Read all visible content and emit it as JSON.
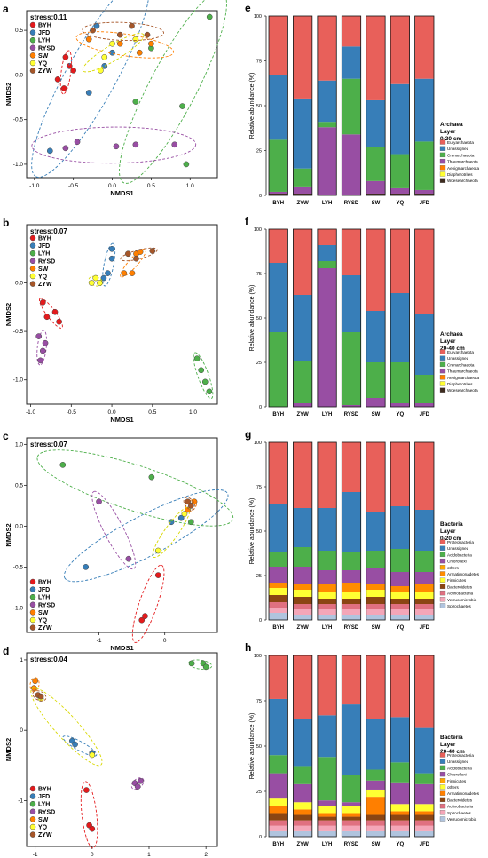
{
  "nmds_panels": [
    {
      "letter": "a",
      "stress": "stress:0.11",
      "xticks": [
        "-1.0",
        "-0.5",
        "0.0",
        "0.5",
        "1.0"
      ],
      "yticks": [
        "0.5",
        "0.0",
        "-0.5",
        "-1.0"
      ],
      "xlabel": "NMDS1",
      "ylabel": "NMDS2"
    },
    {
      "letter": "b",
      "stress": "stress:0.07",
      "xticks": [
        "-1.0",
        "-0.5",
        "0.0",
        "0.5",
        "1.0"
      ],
      "yticks": [
        "0.0",
        "-0.5",
        "-1.0"
      ],
      "xlabel": "NMDS1",
      "ylabel": "NMDS2"
    },
    {
      "letter": "c",
      "stress": "stress:0.07",
      "xticks": [
        "-1",
        "0"
      ],
      "yticks": [
        "1.0",
        "0.5",
        "0.0",
        "-0.5",
        "-1.0"
      ],
      "xlabel": "NMDS1",
      "ylabel": "NMDS2"
    },
    {
      "letter": "d",
      "stress": "stress:0.04",
      "xticks": [
        "-1",
        "0",
        "1",
        "2"
      ],
      "yticks": [
        "1",
        "0",
        "-1"
      ],
      "xlabel": "NMDS1",
      "ylabel": "NMDS2"
    }
  ],
  "nmds_groups": [
    {
      "name": "BYH",
      "color": "#e41a1c"
    },
    {
      "name": "JFD",
      "color": "#377eb8"
    },
    {
      "name": "LYH",
      "color": "#4daf4a"
    },
    {
      "name": "RYSD",
      "color": "#984ea3"
    },
    {
      "name": "SW",
      "color": "#ff7f00"
    },
    {
      "name": "YQ",
      "color": "#ffff33"
    },
    {
      "name": "ZYW",
      "color": "#a65628"
    }
  ],
  "chart_data": [
    {
      "type": "bar",
      "panel": "e",
      "stacked": true,
      "categories": [
        "BYH",
        "ZYW",
        "LYH",
        "RYSD",
        "SW",
        "YQ",
        "JFD"
      ],
      "ylabel": "Relative abundance (%)",
      "yticks": [
        "0",
        "25",
        "50",
        "75",
        "100"
      ],
      "ylim": [
        0,
        100
      ],
      "legend_title": [
        "Archaea",
        "Layer",
        "0-20 cm"
      ],
      "series": [
        {
          "name": "Woesearchaeota",
          "color": "#3d2b1f",
          "values": [
            1,
            1,
            0,
            0,
            1,
            1,
            1
          ]
        },
        {
          "name": "Diapherotrites",
          "color": "#ffff33",
          "values": [
            0,
            0,
            0,
            0,
            0,
            0,
            0
          ]
        },
        {
          "name": "Aenigmarchaeota",
          "color": "#ff7f00",
          "values": [
            0,
            0,
            0,
            0,
            0,
            0,
            0
          ]
        },
        {
          "name": "Thaumarchaeota",
          "color": "#984ea3",
          "values": [
            1,
            4,
            38,
            34,
            7,
            3,
            2
          ]
        },
        {
          "name": "Crenarchaeota",
          "color": "#4daf4a",
          "values": [
            29,
            10,
            3,
            31,
            19,
            19,
            27
          ]
        },
        {
          "name": "Unassigned",
          "color": "#377eb8",
          "values": [
            36,
            39,
            23,
            18,
            26,
            39,
            35
          ]
        },
        {
          "name": "Euryarchaeota",
          "color": "#e8605a",
          "values": [
            33,
            46,
            36,
            17,
            47,
            38,
            35
          ]
        }
      ]
    },
    {
      "type": "bar",
      "panel": "f",
      "stacked": true,
      "categories": [
        "BYH",
        "ZYW",
        "LYH",
        "RYSD",
        "SW",
        "YQ",
        "JFD"
      ],
      "ylabel": "Relative abundance (%)",
      "yticks": [
        "0",
        "25",
        "50",
        "75",
        "100"
      ],
      "ylim": [
        0,
        100
      ],
      "legend_title": [
        "Archaea",
        "Layer",
        "20-40 cm"
      ],
      "series": [
        {
          "name": "Woesearchaeota",
          "color": "#3d2b1f",
          "values": [
            0,
            0,
            0,
            0,
            0,
            0,
            0
          ]
        },
        {
          "name": "Diapherotrites",
          "color": "#ffff33",
          "values": [
            0,
            0,
            0,
            0,
            0,
            0,
            0
          ]
        },
        {
          "name": "Aenigmarchaeota",
          "color": "#ff7f00",
          "values": [
            0,
            0,
            0,
            0,
            0,
            0,
            0
          ]
        },
        {
          "name": "Thaumarchaeota",
          "color": "#984ea3",
          "values": [
            0,
            2,
            78,
            1,
            5,
            2,
            2
          ]
        },
        {
          "name": "Crenarchaeota",
          "color": "#4daf4a",
          "values": [
            42,
            24,
            4,
            41,
            20,
            23,
            16
          ]
        },
        {
          "name": "Unassigned",
          "color": "#377eb8",
          "values": [
            39,
            37,
            9,
            32,
            29,
            39,
            34
          ]
        },
        {
          "name": "Euryarchaeota",
          "color": "#e8605a",
          "values": [
            19,
            37,
            9,
            26,
            46,
            36,
            48
          ]
        }
      ]
    },
    {
      "type": "bar",
      "panel": "g",
      "stacked": true,
      "categories": [
        "BYH",
        "ZYW",
        "LYH",
        "RYSD",
        "SW",
        "YQ",
        "JFD"
      ],
      "ylabel": "Relative abundance (%)",
      "yticks": [
        "0",
        "25",
        "50",
        "75",
        "100"
      ],
      "ylim": [
        0,
        100
      ],
      "legend_title": [
        "Bacteria",
        "Layer",
        "0-20 cm"
      ],
      "series": [
        {
          "name": "Spirochaetes",
          "color": "#b0c4de",
          "values": [
            4,
            3,
            3,
            3,
            3,
            3,
            3
          ]
        },
        {
          "name": "Verrucomicrobia",
          "color": "#f4a6b8",
          "values": [
            3,
            3,
            3,
            3,
            3,
            3,
            3
          ]
        },
        {
          "name": "Actinobacteria",
          "color": "#e07080",
          "values": [
            3,
            3,
            3,
            3,
            3,
            3,
            3
          ]
        },
        {
          "name": "Bacteroidetes",
          "color": "#8b4513",
          "values": [
            4,
            4,
            3,
            3,
            4,
            3,
            3
          ]
        },
        {
          "name": "Firmicutes",
          "color": "#ffff33",
          "values": [
            4,
            4,
            4,
            4,
            4,
            4,
            4
          ]
        },
        {
          "name": "Armatimonadetes",
          "color": "#ff8c00",
          "values": [
            3,
            3,
            4,
            5,
            3,
            3,
            4
          ]
        },
        {
          "name": "others",
          "color": "#ffa500",
          "values": [
            0,
            0,
            0,
            0,
            0,
            0,
            0
          ]
        },
        {
          "name": "Chloroflexi",
          "color": "#984ea3",
          "values": [
            9,
            10,
            8,
            7,
            9,
            8,
            7
          ]
        },
        {
          "name": "Acidobacteria",
          "color": "#4daf4a",
          "values": [
            8,
            11,
            11,
            10,
            10,
            13,
            12
          ]
        },
        {
          "name": "Unassigned",
          "color": "#377eb8",
          "values": [
            27,
            22,
            24,
            34,
            22,
            24,
            23
          ]
        },
        {
          "name": "Proteobacteria",
          "color": "#e8605a",
          "values": [
            35,
            37,
            37,
            28,
            39,
            36,
            38
          ]
        }
      ]
    },
    {
      "type": "bar",
      "panel": "h",
      "stacked": true,
      "categories": [
        "BYH",
        "ZYW",
        "LYH",
        "RYSD",
        "SW",
        "YQ",
        "JFD"
      ],
      "ylabel": "Relative abundance (%)",
      "yticks": [
        "0",
        "25",
        "50",
        "75",
        "100"
      ],
      "ylim": [
        0,
        100
      ],
      "legend_title": [
        "Bacteria",
        "Layer",
        "20-40 cm"
      ],
      "series": [
        {
          "name": "Verrucomicrobia",
          "color": "#b0c4de",
          "values": [
            3,
            3,
            3,
            3,
            3,
            3,
            3
          ]
        },
        {
          "name": "Spirochaetes",
          "color": "#f4a6b8",
          "values": [
            3,
            3,
            3,
            3,
            3,
            3,
            3
          ]
        },
        {
          "name": "Actinobacteria",
          "color": "#e07080",
          "values": [
            3,
            3,
            3,
            3,
            3,
            3,
            3
          ]
        },
        {
          "name": "Bacteroidetes",
          "color": "#8b4513",
          "values": [
            4,
            3,
            2,
            2,
            3,
            3,
            3
          ]
        },
        {
          "name": "Armatimonadetes",
          "color": "#ff7f00",
          "values": [
            4,
            3,
            2,
            2,
            10,
            2,
            2
          ]
        },
        {
          "name": "others",
          "color": "#ffff33",
          "values": [
            4,
            4,
            4,
            4,
            4,
            4,
            4
          ]
        },
        {
          "name": "Firmicutes",
          "color": "#ffa500",
          "values": [
            0,
            0,
            0,
            0,
            0,
            0,
            0
          ]
        },
        {
          "name": "Chloroflexi",
          "color": "#984ea3",
          "values": [
            14,
            10,
            3,
            2,
            5,
            12,
            11
          ]
        },
        {
          "name": "Acidobacteria",
          "color": "#4daf4a",
          "values": [
            10,
            10,
            24,
            15,
            6,
            11,
            6
          ]
        },
        {
          "name": "Unassigned",
          "color": "#377eb8",
          "values": [
            31,
            26,
            23,
            39,
            28,
            25,
            25
          ]
        },
        {
          "name": "Proteobacteria",
          "color": "#e8605a",
          "values": [
            24,
            35,
            33,
            27,
            35,
            34,
            40
          ]
        }
      ]
    }
  ]
}
